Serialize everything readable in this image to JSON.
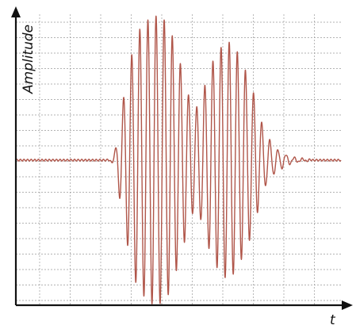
{
  "chart_data": {
    "type": "line",
    "title": "",
    "xlabel": "t",
    "ylabel": "Amplitude",
    "grid": true,
    "tick_labels": false,
    "colors": {
      "signal": "#b0564a",
      "axis": "#111111",
      "grid": "#9a9a9a",
      "background": "#ffffff"
    },
    "xlim": [
      0,
      1
    ],
    "ylim": [
      -1,
      1
    ],
    "series": [
      {
        "name": "",
        "x": [
          0.0,
          0.05,
          0.1,
          0.15,
          0.2,
          0.25,
          0.28,
          0.3,
          0.31,
          0.33,
          0.35,
          0.37,
          0.4,
          0.43,
          0.45,
          0.47,
          0.48,
          0.5,
          0.52,
          0.54,
          0.55,
          0.57,
          0.6,
          0.63,
          0.65,
          0.67,
          0.7,
          0.73,
          0.75,
          0.77,
          0.8,
          0.83,
          0.85,
          0.88,
          0.92,
          0.95,
          1.0
        ],
        "envelope": [
          0.0,
          0.0,
          0.0,
          0.0,
          0.0,
          0.0,
          0.0,
          0.02,
          0.12,
          0.42,
          0.66,
          0.86,
          0.96,
          1.0,
          0.98,
          0.93,
          0.86,
          0.72,
          0.55,
          0.38,
          0.34,
          0.42,
          0.66,
          0.78,
          0.82,
          0.79,
          0.66,
          0.48,
          0.3,
          0.17,
          0.08,
          0.04,
          0.02,
          0.01,
          0.0,
          0.0,
          0.0
        ],
        "carrier_cycles": 40
      }
    ]
  }
}
